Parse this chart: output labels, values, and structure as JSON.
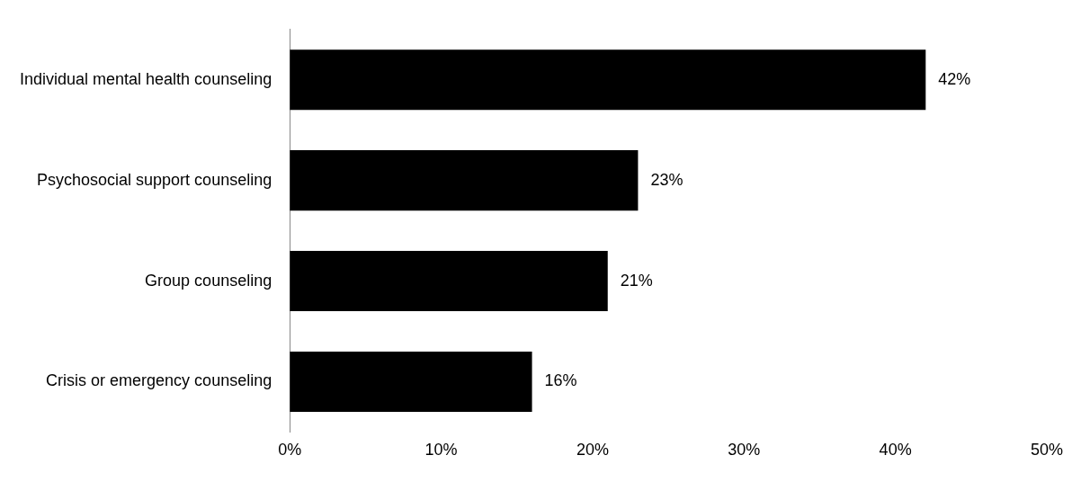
{
  "chart_data": {
    "type": "bar",
    "orientation": "horizontal",
    "categories": [
      "Individual mental health counseling",
      "Psychosocial support counseling",
      "Group counseling",
      "Crisis or emergency counseling"
    ],
    "values": [
      42,
      23,
      21,
      16
    ],
    "color": "#000000",
    "value_labels": [
      "42%",
      "23%",
      "21%",
      "16%"
    ],
    "xlim": [
      0,
      50
    ],
    "xticks": [
      {
        "value": 0,
        "label": "0%"
      },
      {
        "value": 10,
        "label": "10%"
      },
      {
        "value": 20,
        "label": "20%"
      },
      {
        "value": 30,
        "label": "30%"
      },
      {
        "value": 40,
        "label": "40%"
      },
      {
        "value": 50,
        "label": "50%"
      }
    ],
    "grid": false,
    "legend": false
  }
}
